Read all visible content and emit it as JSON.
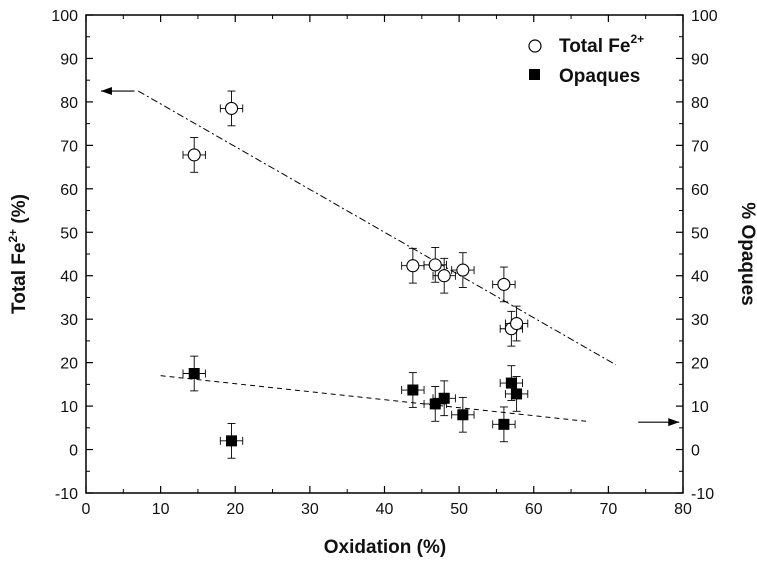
{
  "chart_data": {
    "type": "scatter",
    "xlabel": "Oxidation (%)",
    "ylabel_left": {
      "main": "Total Fe",
      "sup": "2+",
      "tail": " (%)"
    },
    "ylabel_right": "% Opaques",
    "xlim": [
      0,
      80
    ],
    "ylim": [
      -10,
      100
    ],
    "x_ticks": [
      "0",
      "10",
      "20",
      "30",
      "40",
      "50",
      "60",
      "70",
      "80"
    ],
    "y_ticks": [
      "-10",
      "0",
      "10",
      "20",
      "30",
      "40",
      "50",
      "60",
      "70",
      "80",
      "90",
      "100"
    ],
    "grid": false,
    "legend": {
      "position": "top-right",
      "entries": [
        {
          "label_main": "Total Fe",
          "label_sup": "2+",
          "marker": "open-circle"
        },
        {
          "label_main": "Opaques",
          "label_sup": "",
          "marker": "filled-square"
        }
      ]
    },
    "series": [
      {
        "name": "Total Fe2+",
        "marker": "open-circle",
        "points": [
          {
            "x": 14.5,
            "y": 67.8,
            "xerr": 1.5,
            "yerr": 4
          },
          {
            "x": 19.5,
            "y": 78.5,
            "xerr": 1.5,
            "yerr": 4
          },
          {
            "x": 43.8,
            "y": 42.3,
            "xerr": 1.5,
            "yerr": 4
          },
          {
            "x": 46.8,
            "y": 42.5,
            "xerr": 1.5,
            "yerr": 4
          },
          {
            "x": 48.0,
            "y": 40.0,
            "xerr": 1.5,
            "yerr": 4
          },
          {
            "x": 50.5,
            "y": 41.3,
            "xerr": 1.5,
            "yerr": 4
          },
          {
            "x": 56.0,
            "y": 38.0,
            "xerr": 1.5,
            "yerr": 4
          },
          {
            "x": 57.0,
            "y": 27.8,
            "xerr": 1.5,
            "yerr": 4
          },
          {
            "x": 57.7,
            "y": 29.0,
            "xerr": 1.5,
            "yerr": 4
          }
        ],
        "trend": {
          "style": "dash-dot",
          "x": [
            7,
            71
          ],
          "y": [
            82.5,
            19.5
          ]
        },
        "arrow": {
          "direction": "left",
          "x": [
            6.5,
            2
          ],
          "y": [
            82.5,
            82.5
          ]
        }
      },
      {
        "name": "Opaques",
        "marker": "filled-square",
        "points": [
          {
            "x": 14.5,
            "y": 17.5,
            "xerr": 1.5,
            "yerr": 4
          },
          {
            "x": 19.5,
            "y": 2.0,
            "xerr": 1.5,
            "yerr": 4
          },
          {
            "x": 43.8,
            "y": 13.7,
            "xerr": 1.5,
            "yerr": 4
          },
          {
            "x": 46.8,
            "y": 10.5,
            "xerr": 1.5,
            "yerr": 4
          },
          {
            "x": 48.0,
            "y": 11.8,
            "xerr": 1.5,
            "yerr": 4
          },
          {
            "x": 50.5,
            "y": 8.0,
            "xerr": 1.5,
            "yerr": 4
          },
          {
            "x": 56.0,
            "y": 5.8,
            "xerr": 1.5,
            "yerr": 4
          },
          {
            "x": 57.0,
            "y": 15.3,
            "xerr": 1.5,
            "yerr": 4
          },
          {
            "x": 57.7,
            "y": 12.8,
            "xerr": 1.5,
            "yerr": 4
          }
        ],
        "trend": {
          "style": "dashed",
          "x": [
            10,
            67
          ],
          "y": [
            17,
            6.5
          ]
        },
        "arrow": {
          "direction": "right",
          "x": [
            74,
            79.5
          ],
          "y": [
            6.3,
            6.3
          ]
        }
      }
    ]
  }
}
